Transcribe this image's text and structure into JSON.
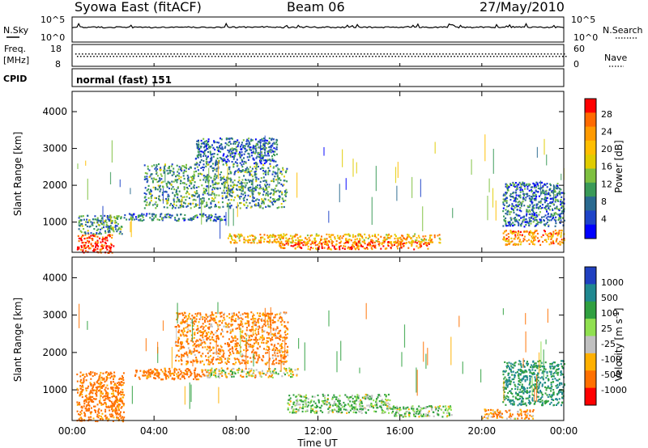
{
  "header": {
    "title": "Syowa East (fitACF)",
    "beam": "Beam 06",
    "date": "27/May/2010"
  },
  "strip_labels": {
    "nsky": "N.Sky",
    "nsearch": "N.Search",
    "freq": "Freq.",
    "freq_unit": "[MHz]",
    "nave": "Nave",
    "cpid": "CPID",
    "cpid_value": "normal (fast) 151"
  },
  "strip_ticks": {
    "noise_left": [
      "10^5",
      "10^0"
    ],
    "noise_right": [
      "10^5",
      "10^0"
    ],
    "freq_left": [
      "18",
      "8"
    ],
    "nave_right": [
      "60",
      "0"
    ]
  },
  "colorbars": {
    "power": {
      "label": "Power [dB]",
      "ticks": [
        "28",
        "24",
        "20",
        "16",
        "12",
        "8",
        "4"
      ],
      "colors": [
        "#ff0000",
        "#ff6a00",
        "#ff9a00",
        "#ffbe00",
        "#e0cc00",
        "#7ec040",
        "#3a9a58",
        "#2a6a90",
        "#1e44c8",
        "#0000ff"
      ]
    },
    "velocity": {
      "label": "Velocity [m s^-1]",
      "ticks": [
        "1000",
        "500",
        "100",
        "25",
        "-25",
        "-100",
        "-500",
        "-1000"
      ],
      "colors": [
        "#2040c0",
        "#208890",
        "#30a040",
        "#90e050",
        "#c0c0c0",
        "#ffb000",
        "#ff7000",
        "#ff0000"
      ]
    }
  },
  "axes": {
    "ylabel": "Slant Range [km]",
    "yticks": [
      "4000",
      "3000",
      "2000",
      "1000"
    ],
    "xticks": [
      "00:00",
      "04:00",
      "08:00",
      "12:00",
      "16:00",
      "20:00",
      "00:00"
    ],
    "xlabel": "Time UT"
  },
  "chart_data": [
    {
      "type": "heatmap",
      "title": "",
      "quantity": "Power",
      "unit": "dB",
      "xlabel": "Time UT",
      "ylabel": "Slant Range [km]",
      "x_range_hours": [
        0,
        24
      ],
      "ylim": [
        180,
        4550
      ],
      "color_scale": [
        4,
        28
      ],
      "regions": [
        {
          "t": [
            0.2,
            2.0
          ],
          "r": [
            180,
            700
          ],
          "value": 26
        },
        {
          "t": [
            0.3,
            2.4
          ],
          "r": [
            700,
            1200
          ],
          "value": 12
        },
        {
          "t": [
            2.5,
            7.5
          ],
          "r": [
            1050,
            1250
          ],
          "value": 10
        },
        {
          "t": [
            3.5,
            10.5
          ],
          "r": [
            1400,
            2600
          ],
          "value": 12
        },
        {
          "t": [
            6.0,
            10.0
          ],
          "r": [
            2600,
            3300
          ],
          "value": 10
        },
        {
          "t": [
            7.5,
            18.0
          ],
          "r": [
            450,
            700
          ],
          "value": 20
        },
        {
          "t": [
            10.0,
            17.5
          ],
          "r": [
            280,
            500
          ],
          "value": 24
        },
        {
          "t": [
            21.0,
            24.0
          ],
          "r": [
            400,
            800
          ],
          "value": 22
        },
        {
          "t": [
            21.0,
            24.0
          ],
          "r": [
            900,
            2100
          ],
          "value": 10
        }
      ]
    },
    {
      "type": "heatmap",
      "title": "",
      "quantity": "Velocity",
      "unit": "m s^-1",
      "xlabel": "Time UT",
      "ylabel": "Slant Range [km]",
      "x_range_hours": [
        0,
        24
      ],
      "ylim": [
        180,
        4550
      ],
      "color_scale": [
        -1000,
        1000
      ],
      "regions": [
        {
          "t": [
            0.2,
            2.5
          ],
          "r": [
            180,
            1500
          ],
          "value": -200
        },
        {
          "t": [
            3.0,
            6.5
          ],
          "r": [
            1300,
            1600
          ],
          "value": -200
        },
        {
          "t": [
            6.5,
            11.0
          ],
          "r": [
            1350,
            1600
          ],
          "value": 0
        },
        {
          "t": [
            5.0,
            10.5
          ],
          "r": [
            1700,
            3100
          ],
          "value": -150
        },
        {
          "t": [
            10.5,
            15.5
          ],
          "r": [
            400,
            900
          ],
          "value": 100
        },
        {
          "t": [
            15.5,
            18.5
          ],
          "r": [
            300,
            600
          ],
          "value": 100
        },
        {
          "t": [
            20.0,
            22.5
          ],
          "r": [
            250,
            500
          ],
          "value": -120
        },
        {
          "t": [
            21.0,
            24.0
          ],
          "r": [
            600,
            1800
          ],
          "value": 500
        }
      ]
    }
  ]
}
